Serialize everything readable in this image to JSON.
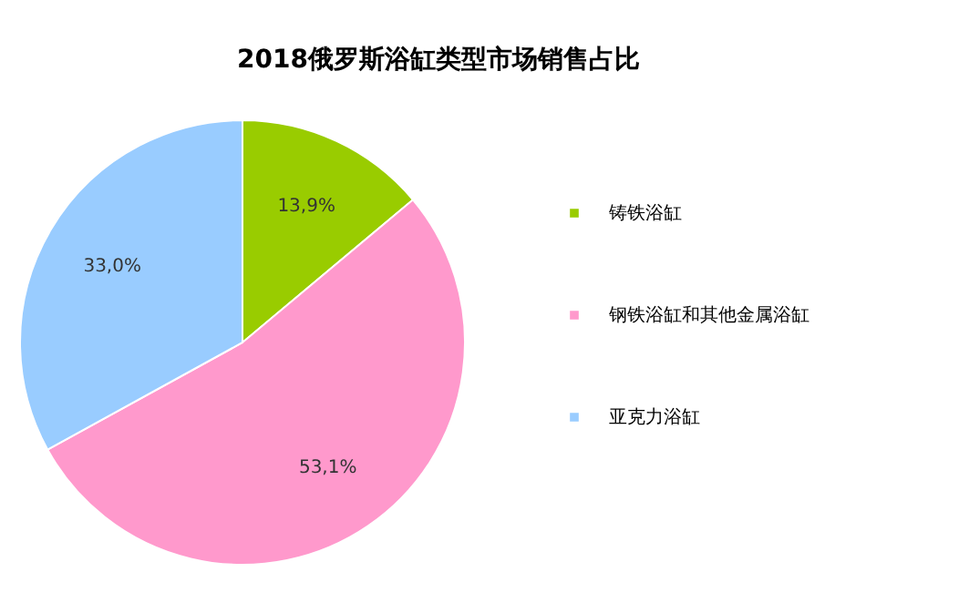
{
  "chart_data": {
    "type": "pie",
    "title": "2018俄罗斯浴缸类型市场销售占比",
    "categories": [
      "铸铁浴缸",
      "钢铁浴缸和其他金属浴缸",
      "亚克力浴缸"
    ],
    "values": [
      13.9,
      53.1,
      33.0
    ],
    "colors": [
      "#99cc00",
      "#ff99cc",
      "#99ccff"
    ],
    "value_labels": [
      "13,9%",
      "53,1%",
      "33,0%"
    ],
    "legend": "right"
  }
}
